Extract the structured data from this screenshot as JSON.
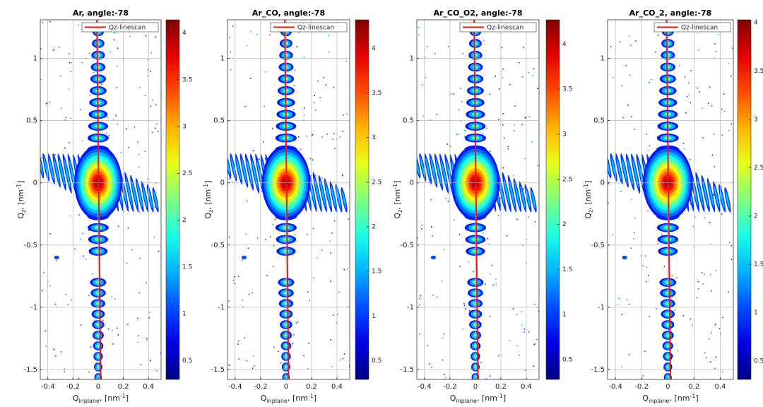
{
  "chart_data": [
    {
      "type": "heatmap",
      "title": "Ar, angle:-78",
      "x_label": {
        "symbol": "Q",
        "subscript": "inplane",
        "suffix": ", [nm",
        "superscript": "-1",
        "close": "]"
      },
      "y_label": {
        "symbol": "Q",
        "subscript": "z",
        "suffix": ", [nm",
        "superscript": "-1",
        "close": "]"
      },
      "xlim": [
        -0.46,
        0.5
      ],
      "xticks": [
        -0.4,
        -0.2,
        0,
        0.2,
        0.4
      ],
      "ylim": [
        -1.58,
        1.31
      ],
      "yticks": [
        -1.5,
        -1,
        -0.5,
        0,
        0.5,
        1
      ],
      "grid": true,
      "colormap": "jet",
      "clim": [
        0.3,
        4.14
      ],
      "cticks": [
        0.5,
        1,
        1.5,
        2,
        2.5,
        3,
        3.5,
        4
      ],
      "legend": "upper right",
      "series": [
        {
          "name": "Qz-linescan",
          "color": "#e41a1c",
          "x": [
            0.02,
            -0.01
          ],
          "values": [
            -1.58,
            1.31
          ]
        }
      ]
    },
    {
      "type": "heatmap",
      "title": "Ar_CO, angle:-78",
      "x_label": {
        "symbol": "Q",
        "subscript": "inplane",
        "suffix": ", [nm",
        "superscript": "-1",
        "close": "]"
      },
      "y_label": {
        "symbol": "Q",
        "subscript": "z",
        "suffix": ", [nm",
        "superscript": "-1",
        "close": "]"
      },
      "xlim": [
        -0.46,
        0.5
      ],
      "xticks": [
        -0.4,
        -0.2,
        0,
        0.2,
        0.4
      ],
      "ylim": [
        -1.58,
        1.31
      ],
      "yticks": [
        -1.5,
        -1,
        -0.5,
        0,
        0.5,
        1
      ],
      "grid": true,
      "colormap": "jet",
      "clim": [
        0.29,
        4.32
      ],
      "cticks": [
        0.5,
        1,
        1.5,
        2,
        2.5,
        3,
        3.5,
        4
      ],
      "legend": "upper right",
      "series": [
        {
          "name": "Qz-linescan",
          "color": "#e41a1c",
          "x": [
            0.02,
            -0.01
          ],
          "values": [
            -1.58,
            1.31
          ]
        }
      ]
    },
    {
      "type": "heatmap",
      "title": "Ar_CO_O2, angle:-78",
      "x_label": {
        "symbol": "Q",
        "subscript": "inplane",
        "suffix": ", [nm",
        "superscript": "-1",
        "close": "]"
      },
      "y_label": {
        "symbol": "Q",
        "subscript": "z",
        "suffix": ", [nm",
        "superscript": "-1",
        "close": "]"
      },
      "xlim": [
        -0.46,
        0.5
      ],
      "xticks": [
        -0.4,
        -0.2,
        0,
        0.2,
        0.4
      ],
      "ylim": [
        -1.58,
        1.31
      ],
      "yticks": [
        -1.5,
        -1,
        -0.5,
        0,
        0.5,
        1
      ],
      "grid": true,
      "colormap": "jet",
      "clim": [
        0.28,
        4.27
      ],
      "cticks": [
        0.5,
        1,
        1.5,
        2,
        2.5,
        3,
        3.5,
        4
      ],
      "legend": "upper right",
      "series": [
        {
          "name": "Qz-linescan",
          "color": "#e41a1c",
          "x": [
            0.02,
            -0.01
          ],
          "values": [
            -1.58,
            1.31
          ]
        }
      ]
    },
    {
      "type": "heatmap",
      "title": "Ar_CO_2, angle:-78",
      "x_label": {
        "symbol": "Q",
        "subscript": "inplane",
        "suffix": ", [nm",
        "superscript": "-1",
        "close": "]"
      },
      "y_label": {
        "symbol": "Q",
        "subscript": "z",
        "suffix": ", [nm",
        "superscript": "-1",
        "close": "]"
      },
      "xlim": [
        -0.46,
        0.5
      ],
      "xticks": [
        -0.4,
        -0.2,
        0,
        0.2,
        0.4
      ],
      "ylim": [
        -1.58,
        1.31
      ],
      "yticks": [
        -1.5,
        -1,
        -0.5,
        0,
        0.5,
        1
      ],
      "grid": true,
      "colormap": "jet",
      "clim": [
        0.31,
        4.03
      ],
      "cticks": [
        0.5,
        1,
        1.5,
        2,
        2.5,
        3,
        3.5,
        4
      ],
      "legend": "upper right",
      "series": [
        {
          "name": "Qz-linescan",
          "color": "#e41a1c",
          "x": [
            0.02,
            -0.01
          ],
          "values": [
            -1.58,
            1.31
          ]
        }
      ]
    }
  ]
}
